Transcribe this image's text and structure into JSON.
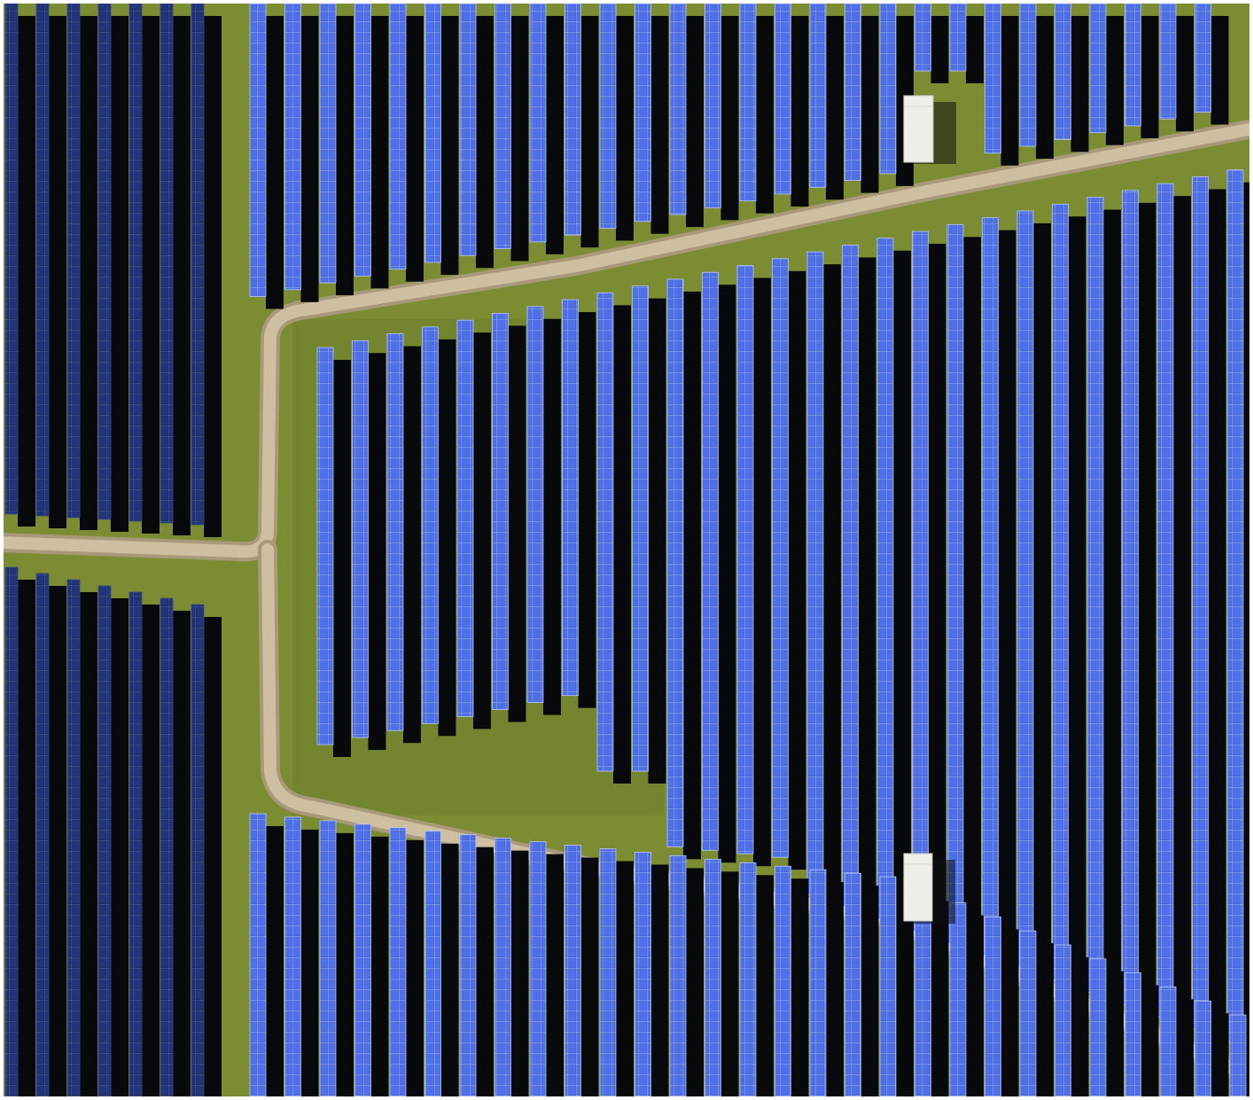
{
  "image": {
    "subject": "solar-farm",
    "colors": {
      "grass": "#7d8e34",
      "grass_dark": "#6b7a2b",
      "path": "#c8b999",
      "path_edge": "#a99a7a",
      "panel": "#3f5fd6",
      "panel_light": "#5d7ff0",
      "panel_dark_field": "#1c2a63",
      "panel_grid": "#9fb3f5",
      "shadow": "#080a0c",
      "shed": "#f1f1ec",
      "frame": "#ffffff"
    },
    "icons": {
      "shed_top": "shed-icon",
      "shed_bottom": "shed-icon"
    }
  }
}
